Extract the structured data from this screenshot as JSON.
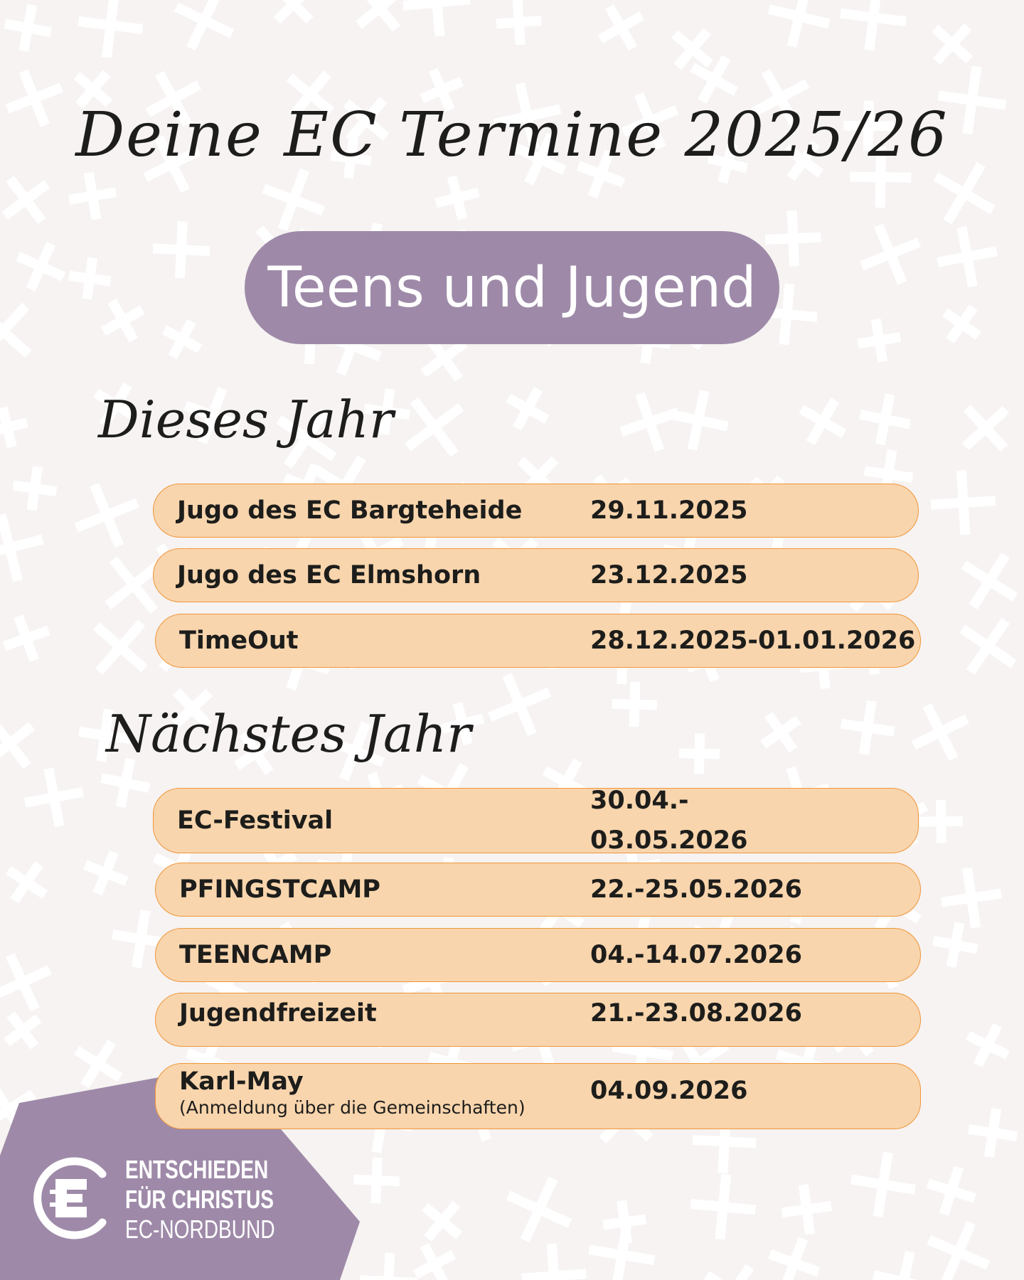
{
  "title": "Deine EC Termine 2025/26",
  "category": "Teens und Jugend",
  "this_year": {
    "heading": "Dieses Jahr",
    "events": [
      {
        "name": "Jugo des EC Bargteheide",
        "date": "29.11.2025"
      },
      {
        "name": "Jugo des EC Elmshorn",
        "date": "23.12.2025"
      },
      {
        "name": "TimeOut",
        "date": "28.12.2025-01.01.2026"
      }
    ]
  },
  "next_year": {
    "heading": "Nächstes Jahr",
    "events": [
      {
        "name": "EC-Festival",
        "date_line1": "30.04.-",
        "date_line2": "03.05.2026"
      },
      {
        "name": "PFINGSTCAMP",
        "date": "22.-25.05.2026"
      },
      {
        "name": "TEENCAMP",
        "date": "04.-14.07.2026"
      },
      {
        "name": "Jugendfreizeit",
        "date": "21.-23.08.2026"
      },
      {
        "name": "Karl-May",
        "note": "(Anmeldung über die Gemeinschaften)",
        "date": "04.09.2026"
      }
    ]
  },
  "logo": {
    "line1": "ENTSCHIEDEN",
    "line2": "FÜR CHRISTUS",
    "line3": "EC-NORDBUND"
  },
  "colors": {
    "background": "#f6f3f2",
    "accent_purple": "#9e8aa8",
    "row_fill": "#f8d5ad",
    "row_border": "#f0963a"
  }
}
